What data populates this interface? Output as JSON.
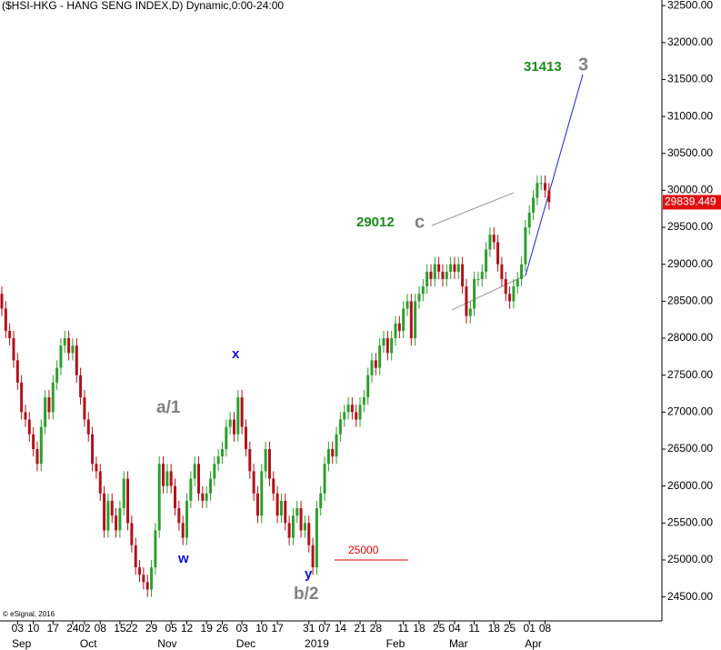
{
  "chart_data": {
    "type": "candlestick",
    "title": "($HSI-HKG - HANG SENG INDEX,D) Dynamic,0:00-24:00",
    "credit": "© eSignal, 2016",
    "up_color": "#2e9e2e",
    "down_color": "#b0121b",
    "ylim": [
      24200,
      32600
    ],
    "yticks": [
      {
        "value": 24500,
        "label": "24500.00"
      },
      {
        "value": 25000,
        "label": "25000.00"
      },
      {
        "value": 25500,
        "label": "25500.00"
      },
      {
        "value": 26000,
        "label": "26000.00"
      },
      {
        "value": 26500,
        "label": "26500.00"
      },
      {
        "value": 27000,
        "label": "27000.00"
      },
      {
        "value": 27500,
        "label": "27500.00"
      },
      {
        "value": 28000,
        "label": "28000.00"
      },
      {
        "value": 28500,
        "label": "28500.00"
      },
      {
        "value": 29000,
        "label": "29000.00"
      },
      {
        "value": 29500,
        "label": "29500.00"
      },
      {
        "value": 30000,
        "label": "30000.00"
      },
      {
        "value": 30500,
        "label": "30500.00"
      },
      {
        "value": 31000,
        "label": "31000.00"
      },
      {
        "value": 31500,
        "label": "31500.00"
      },
      {
        "value": 32000,
        "label": "32000.00"
      },
      {
        "value": 32500,
        "label": "32500.00"
      }
    ],
    "xticks": [
      {
        "value": 4,
        "label": "03"
      },
      {
        "value": 8,
        "label": "10"
      },
      {
        "value": 13,
        "label": "17"
      },
      {
        "value": 18,
        "label": "24"
      },
      {
        "value": 21,
        "label": "02"
      },
      {
        "value": 25,
        "label": "08"
      },
      {
        "value": 30,
        "label": "15"
      },
      {
        "value": 33,
        "label": "22"
      },
      {
        "value": 38,
        "label": "29"
      },
      {
        "value": 43,
        "label": "05"
      },
      {
        "value": 47,
        "label": "12"
      },
      {
        "value": 52,
        "label": "19"
      },
      {
        "value": 56,
        "label": "26"
      },
      {
        "value": 61,
        "label": "03"
      },
      {
        "value": 66,
        "label": "10"
      },
      {
        "value": 70,
        "label": "17"
      },
      {
        "value": 78,
        "label": "31"
      },
      {
        "value": 82,
        "label": "07"
      },
      {
        "value": 86,
        "label": "14"
      },
      {
        "value": 91,
        "label": "21"
      },
      {
        "value": 95,
        "label": "28"
      },
      {
        "value": 102,
        "label": "11"
      },
      {
        "value": 106,
        "label": "18"
      },
      {
        "value": 111,
        "label": "25"
      },
      {
        "value": 115,
        "label": "04"
      },
      {
        "value": 120,
        "label": "11"
      },
      {
        "value": 125,
        "label": "18"
      },
      {
        "value": 129,
        "label": "25"
      },
      {
        "value": 134,
        "label": "01"
      },
      {
        "value": 138,
        "label": "08"
      }
    ],
    "month_labels": [
      {
        "value": 5,
        "label": "Sep"
      },
      {
        "value": 22,
        "label": "Oct"
      },
      {
        "value": 42,
        "label": "Nov"
      },
      {
        "value": 62,
        "label": "Dec"
      },
      {
        "value": 80,
        "label": "2019"
      },
      {
        "value": 100,
        "label": "Feb"
      },
      {
        "value": 116,
        "label": "Mar"
      },
      {
        "value": 135,
        "label": "Apr"
      }
    ],
    "open": [
      28600,
      28400,
      28100,
      28000,
      27700,
      27400,
      27000,
      26900,
      26700,
      26500,
      26300,
      26800,
      27200,
      27000,
      27400,
      27600,
      27900,
      28000,
      27800,
      27900,
      27500,
      27200,
      26900,
      26700,
      26300,
      26200,
      25900,
      25400,
      25800,
      25600,
      25400,
      25700,
      26100,
      25500,
      25200,
      24900,
      24800,
      24700,
      24600,
      24900,
      25400,
      26300,
      26000,
      26200,
      26000,
      25700,
      25500,
      25300,
      25800,
      26100,
      26300,
      25900,
      25800,
      25900,
      26100,
      26300,
      26400,
      26500,
      26800,
      26900,
      26700,
      27200,
      26800,
      26500,
      26200,
      25900,
      25600,
      26200,
      26500,
      26100,
      25900,
      25600,
      25800,
      25500,
      25300,
      25600,
      25700,
      25400,
      25500,
      25200,
      24900,
      25700,
      25900,
      26300,
      26500,
      26400,
      26700,
      26900,
      27000,
      27100,
      27000,
      26900,
      27100,
      27200,
      27500,
      27700,
      27600,
      27900,
      28000,
      27800,
      28000,
      28200,
      28100,
      28400,
      28500,
      28000,
      28500,
      28600,
      28700,
      28900,
      28800,
      29000,
      28900,
      28800,
      28900,
      29000,
      28900,
      29000,
      28700,
      28300,
      28400,
      28800,
      28800,
      28900,
      29200,
      29400,
      29300,
      29000,
      28800,
      28600,
      28500,
      28700,
      28800,
      29000,
      29500,
      29700,
      29900,
      30100,
      30100,
      30000
    ],
    "high": [
      28700,
      28500,
      28200,
      28100,
      27800,
      27500,
      27100,
      27000,
      26800,
      26600,
      26900,
      27300,
      27300,
      27500,
      27700,
      28000,
      28100,
      28100,
      28000,
      28000,
      27600,
      27300,
      27000,
      26800,
      26400,
      26300,
      26000,
      25900,
      25900,
      25700,
      25800,
      26200,
      26200,
      25600,
      25300,
      25000,
      24900,
      24800,
      25000,
      25500,
      26400,
      26400,
      26300,
      26300,
      26100,
      25800,
      25600,
      25900,
      26200,
      26400,
      26400,
      26000,
      26000,
      26200,
      26400,
      26500,
      26600,
      26900,
      27000,
      27000,
      27300,
      27300,
      26900,
      26600,
      26300,
      26000,
      26300,
      26600,
      26600,
      26200,
      26000,
      25900,
      25900,
      25600,
      25700,
      25800,
      25800,
      25600,
      25600,
      25300,
      25800,
      26000,
      26400,
      26600,
      26600,
      26800,
      27000,
      27100,
      27200,
      27200,
      27100,
      27200,
      27300,
      27600,
      27800,
      27800,
      28000,
      28100,
      28100,
      28100,
      28300,
      28300,
      28500,
      28600,
      28600,
      28600,
      28700,
      28800,
      29000,
      29000,
      29100,
      29100,
      29000,
      29000,
      29100,
      29100,
      29100,
      29100,
      28800,
      28500,
      28900,
      28900,
      29000,
      29300,
      29500,
      29500,
      29400,
      29100,
      28900,
      28700,
      28800,
      28900,
      29100,
      29600,
      29800,
      30000,
      30200,
      30200,
      30200,
      30100
    ],
    "low": [
      28300,
      28000,
      27900,
      27600,
      27300,
      26900,
      26800,
      26600,
      26400,
      26200,
      26200,
      26700,
      26900,
      26900,
      27300,
      27500,
      27800,
      27700,
      27700,
      27400,
      27100,
      26800,
      26600,
      26200,
      26100,
      25800,
      25300,
      25300,
      25500,
      25300,
      25300,
      25600,
      25400,
      25100,
      24800,
      24700,
      24600,
      24500,
      24500,
      24800,
      25300,
      25900,
      25900,
      25900,
      25600,
      25400,
      25200,
      25200,
      25700,
      26000,
      25800,
      25700,
      25700,
      25800,
      26000,
      26200,
      26300,
      26400,
      26700,
      26600,
      26600,
      26700,
      26400,
      26100,
      25800,
      25500,
      25500,
      26100,
      26000,
      25800,
      25500,
      25500,
      25400,
      25200,
      25200,
      25500,
      25300,
      25300,
      25100,
      24800,
      24800,
      25600,
      25800,
      26200,
      26300,
      26300,
      26600,
      26800,
      26900,
      26900,
      26800,
      26800,
      27000,
      27100,
      27400,
      27500,
      27500,
      27800,
      27700,
      27700,
      27900,
      28000,
      28000,
      28300,
      27900,
      27900,
      28400,
      28500,
      28600,
      28700,
      28700,
      28800,
      28700,
      28700,
      28800,
      28800,
      28800,
      28600,
      28200,
      28200,
      28300,
      28700,
      28700,
      28800,
      29100,
      29200,
      28900,
      28700,
      28500,
      28400,
      28400,
      28600,
      28700,
      28900,
      29400,
      29600,
      29800,
      30000,
      29900,
      29739.449
    ],
    "close": [
      28400,
      28100,
      28000,
      27700,
      27400,
      27000,
      26900,
      26700,
      26500,
      26300,
      26800,
      27200,
      27000,
      27400,
      27600,
      27900,
      28000,
      27800,
      27900,
      27500,
      27200,
      26900,
      26700,
      26300,
      26200,
      25900,
      25400,
      25800,
      25600,
      25400,
      25700,
      26100,
      25500,
      25200,
      24900,
      24800,
      24700,
      24600,
      24900,
      25400,
      26300,
      26000,
      26200,
      26000,
      25700,
      25500,
      25300,
      25800,
      26100,
      26300,
      25900,
      25800,
      25900,
      26100,
      26300,
      26400,
      26500,
      26800,
      26900,
      26700,
      27200,
      26800,
      26500,
      26200,
      25900,
      25600,
      26200,
      26500,
      26100,
      25900,
      25600,
      25800,
      25500,
      25300,
      25600,
      25700,
      25400,
      25500,
      25200,
      24900,
      25700,
      25900,
      26300,
      26500,
      26400,
      26700,
      26900,
      27000,
      27100,
      27000,
      26900,
      27100,
      27200,
      27500,
      27700,
      27600,
      27900,
      28000,
      27800,
      28000,
      28200,
      28100,
      28400,
      28500,
      28000,
      28500,
      28600,
      28700,
      28900,
      28800,
      29000,
      28900,
      28800,
      28900,
      29000,
      28900,
      29000,
      28700,
      28300,
      28400,
      28800,
      28800,
      28900,
      29200,
      29400,
      29300,
      29000,
      28800,
      28600,
      28500,
      28700,
      28800,
      29000,
      29500,
      29700,
      29900,
      30100,
      30100,
      30000,
      29839.449
    ],
    "last_price": 29839.449,
    "level": 25000,
    "level_color": "#e00000",
    "annotations": [
      {
        "text": "31413",
        "color": "#1a8a1a"
      },
      {
        "text": "3",
        "color": "#808080"
      },
      {
        "text": "29012",
        "color": "#1a8a1a"
      },
      {
        "text": "c",
        "color": "#808080"
      },
      {
        "text": "a/1",
        "color": "#808080"
      },
      {
        "text": "x",
        "color": "#1010d0"
      },
      {
        "text": "w",
        "color": "#1010d0"
      },
      {
        "text": "y",
        "color": "#1010d0"
      },
      {
        "text": "b/2",
        "color": "#808080"
      }
    ]
  }
}
